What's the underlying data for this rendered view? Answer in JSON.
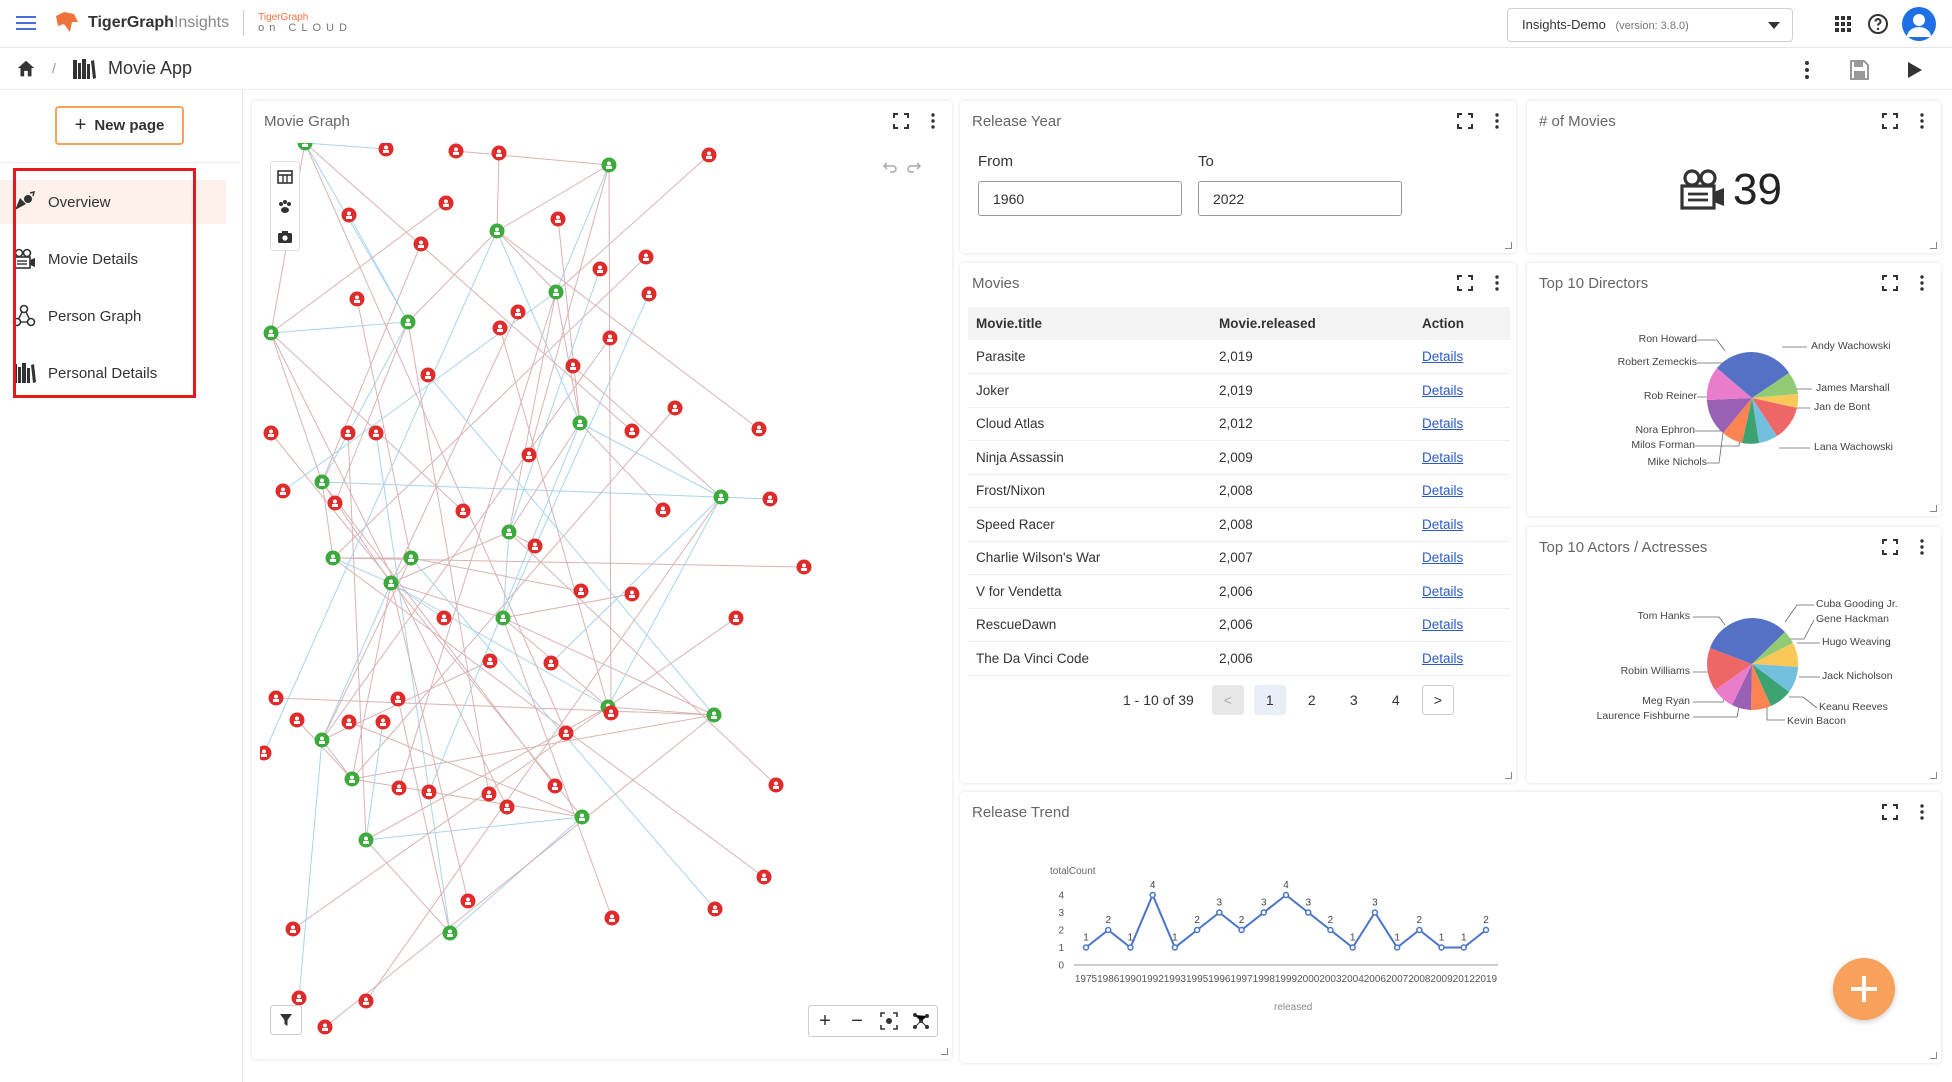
{
  "brand": {
    "name": "TigerGraph",
    "suffix": "Insights",
    "cloud_top": "TigerGraph",
    "cloud_bottom": "on CLOUD"
  },
  "version_select": {
    "value": "Insights-Demo",
    "version": "(version: 3.8.0)"
  },
  "breadcrumb": {
    "separator": "/",
    "app_name": "Movie App"
  },
  "sidebar": {
    "new_page": "New page",
    "pages": [
      {
        "label": "Overview",
        "icon": "overview-icon",
        "active": true
      },
      {
        "label": "Movie Details",
        "icon": "movie-camera-icon"
      },
      {
        "label": "Person Graph",
        "icon": "person-graph-icon"
      },
      {
        "label": "Personal Details",
        "icon": "library-icon"
      }
    ]
  },
  "colors": {
    "accent": "#f7a15a",
    "highlight": "#e4181d",
    "movie_node": "#e02b2b",
    "person_node": "#3daa3d",
    "link": "#2b5bc7",
    "line": "#4a74c9"
  },
  "graph_widget": {
    "title": "Movie Graph"
  },
  "release_year": {
    "title": "Release Year",
    "from_label": "From",
    "from_value": "1960",
    "to_label": "To",
    "to_value": "2022"
  },
  "movie_count": {
    "title": "# of Movies",
    "value": "39"
  },
  "movies": {
    "title": "Movies",
    "columns": [
      "Movie.title",
      "Movie.released",
      "Action"
    ],
    "rows": [
      {
        "title": "Parasite",
        "released": "2,019",
        "action": "Details"
      },
      {
        "title": "Joker",
        "released": "2,019",
        "action": "Details"
      },
      {
        "title": "Cloud Atlas",
        "released": "2,012",
        "action": "Details"
      },
      {
        "title": "Ninja Assassin",
        "released": "2,009",
        "action": "Details"
      },
      {
        "title": "Frost/Nixon",
        "released": "2,008",
        "action": "Details"
      },
      {
        "title": "Speed Racer",
        "released": "2,008",
        "action": "Details"
      },
      {
        "title": "Charlie Wilson's War",
        "released": "2,007",
        "action": "Details"
      },
      {
        "title": "V for Vendetta",
        "released": "2,006",
        "action": "Details"
      },
      {
        "title": "RescueDawn",
        "released": "2,006",
        "action": "Details"
      },
      {
        "title": "The Da Vinci Code",
        "released": "2,006",
        "action": "Details"
      }
    ],
    "pagination": {
      "summary": "1 - 10 of 39",
      "prev": "<",
      "pages": [
        "1",
        "2",
        "3",
        "4"
      ],
      "next": ">",
      "current": "1"
    }
  },
  "top_directors": {
    "title": "Top 10 Directors",
    "labels_left": [
      "Ron Howard",
      "Robert Zemeckis",
      "Rob Reiner",
      "Nora Ephron",
      "Milos Forman",
      "Mike Nichols"
    ],
    "labels_right": [
      "Andy Wachowski",
      "James Marshall",
      "Jan de Bont",
      "Lana Wachowski"
    ]
  },
  "top_actors": {
    "title": "Top 10 Actors / Actresses",
    "labels_left": [
      "Tom Hanks",
      "Robin Williams",
      "Meg Ryan",
      "Laurence Fishburne"
    ],
    "labels_right": [
      "Cuba Gooding Jr.",
      "Gene Hackman",
      "Hugo Weaving",
      "Jack Nicholson",
      "Keanu Reeves",
      "Kevin Bacon"
    ]
  },
  "release_trend": {
    "title": "Release Trend"
  },
  "chart_data": {
    "type": "line",
    "title": "",
    "xlabel": "released",
    "ylabel": "totalCount",
    "categories": [
      "1975",
      "1986",
      "1990",
      "1992",
      "1993",
      "1995",
      "1996",
      "1997",
      "1998",
      "1999",
      "2000",
      "2003",
      "2004",
      "2006",
      "2007",
      "2008",
      "2009",
      "2012",
      "2019"
    ],
    "series": [
      {
        "values": [
          1,
          2,
          1,
          4,
          1,
          2,
          3,
          2,
          3,
          4,
          3,
          2,
          1,
          3,
          1,
          2,
          1,
          1,
          2
        ]
      }
    ],
    "yticks": [
      "0",
      "1",
      "2",
      "3",
      "4"
    ],
    "ylim": [
      0,
      4
    ],
    "grid": false,
    "data_labels": true
  }
}
